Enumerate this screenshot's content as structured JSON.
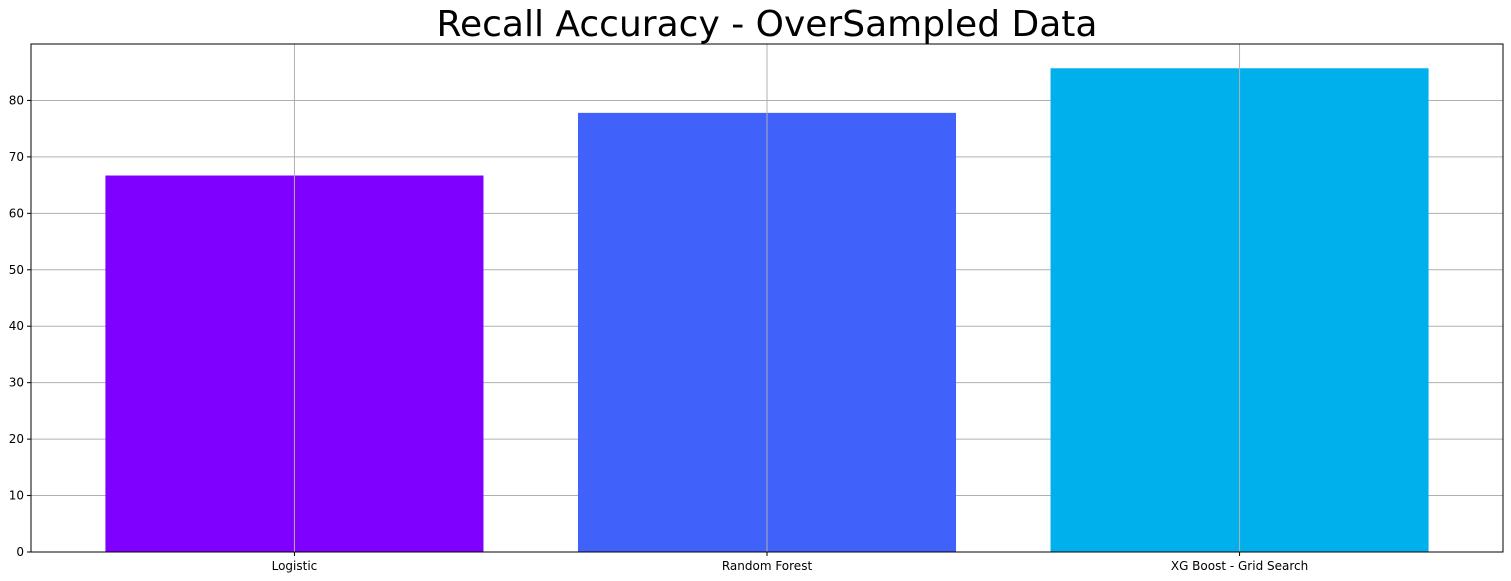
{
  "chart_data": {
    "type": "bar",
    "title": "Recall Accuracy - OverSampled Data",
    "xlabel": "",
    "ylabel": "",
    "categories": [
      "Logistic",
      "Random Forest",
      "XG Boost - Grid Search"
    ],
    "values": [
      66.7,
      77.8,
      85.7
    ],
    "colors": [
      "#7f00ff",
      "#4062fa",
      "#00b0ec"
    ],
    "ylim": [
      0,
      90
    ],
    "yticks": [
      0,
      10,
      20,
      30,
      40,
      50,
      60,
      70,
      80
    ],
    "grid": true,
    "legend": "none"
  }
}
